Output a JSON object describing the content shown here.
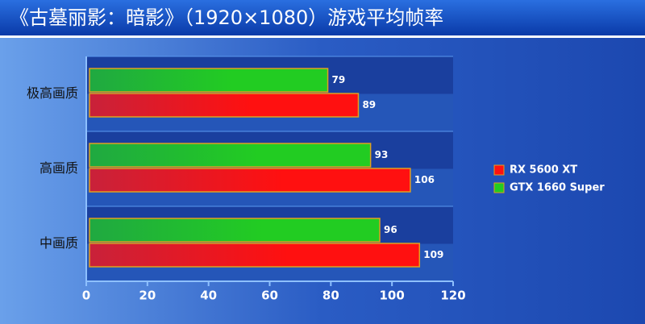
{
  "chart_data": {
    "type": "bar",
    "orientation": "horizontal",
    "title": "《古墓丽影：暗影》（1920×1080）游戏平均帧率",
    "categories": [
      "极高画质",
      "高画质",
      "中画质"
    ],
    "series": [
      {
        "name": "RX 5600 XT",
        "color": "#ff1010",
        "values": [
          89,
          106,
          109
        ]
      },
      {
        "name": "GTX 1660 Super",
        "color": "#22cc22",
        "values": [
          79,
          93,
          96
        ]
      }
    ],
    "xlim": [
      0,
      120
    ],
    "xticks": [
      0,
      20,
      40,
      60,
      80,
      100,
      120
    ],
    "grid": true,
    "legend": "right"
  }
}
